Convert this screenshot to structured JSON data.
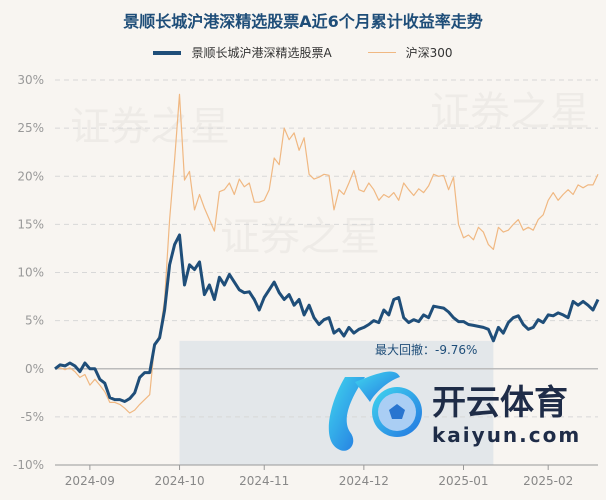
{
  "chart_data": {
    "type": "line",
    "title": "景顺长城沪港深精选股票A近6个月累计收益率走势",
    "legend_position": "top",
    "grid": true,
    "ylim": [
      -10,
      30
    ],
    "yticks": [
      "30%",
      "25%",
      "20%",
      "15%",
      "10%",
      "5%",
      "0%",
      "-5%",
      "-10%"
    ],
    "ytick_values": [
      30,
      25,
      20,
      15,
      10,
      5,
      0,
      -5,
      -10
    ],
    "xticks": [
      "2024-09",
      "2024-10",
      "2024-11",
      "2024-12",
      "2025-01",
      "2025-02"
    ],
    "series": [
      {
        "name": "景顺长城沪港深精选股票A",
        "color": "#1f4e79",
        "values": [
          0,
          0.4,
          0.3,
          0.6,
          0.3,
          -0.3,
          0.6,
          0,
          0,
          -1.1,
          -1.5,
          -3,
          -3.2,
          -3.2,
          -3.4,
          -3.1,
          -2.5,
          -0.9,
          -0.4,
          -0.4,
          2.5,
          3.2,
          6.1,
          10.8,
          12.9,
          13.9,
          8.7,
          10.8,
          10.3,
          11.1,
          7.7,
          8.7,
          7.2,
          9.5,
          8.7,
          9.8,
          9.0,
          8.2,
          7.9,
          8,
          7.2,
          6.1,
          7.4,
          8.2,
          9,
          7.9,
          7.2,
          7.7,
          6.6,
          7.2,
          5.6,
          6.6,
          5.3,
          4.6,
          5.1,
          5.3,
          3.7,
          4.1,
          3.4,
          4.3,
          3.7,
          4.1,
          4.3,
          4.6,
          5,
          4.8,
          6.1,
          5.6,
          7.2,
          7.4,
          5.3,
          4.8,
          5.1,
          4.9,
          5.6,
          5.3,
          6.5,
          6.4,
          6.3,
          5.9,
          5.3,
          4.9,
          4.9,
          4.6,
          4.5,
          4.4,
          4.3,
          4.1,
          2.9,
          4.3,
          3.7,
          4.8,
          5.3,
          5.5,
          4.6,
          4.1,
          4.3,
          5.1,
          4.8,
          5.6,
          5.5,
          5.8,
          5.6,
          5.3,
          7,
          6.6,
          7,
          6.6,
          6.1,
          7.2
        ]
      },
      {
        "name": "沪深300",
        "color": "#f0b882",
        "values": [
          0,
          0.1,
          -0.1,
          0.1,
          -0.3,
          -0.9,
          -0.6,
          -1.7,
          -1.1,
          -1.7,
          -2.4,
          -3.5,
          -3.5,
          -3.7,
          -4.1,
          -4.6,
          -4.3,
          -3.7,
          -3.2,
          -2.7,
          2.5,
          3.5,
          7.2,
          15.5,
          21.7,
          28.5,
          19.6,
          20.5,
          16.5,
          18.1,
          16.7,
          15.5,
          14.3,
          18.4,
          18.6,
          19.3,
          18.1,
          19.7,
          18.9,
          19.3,
          17.3,
          17.3,
          17.5,
          18.6,
          21.9,
          21.2,
          25,
          23.8,
          24.5,
          22.7,
          24,
          20.2,
          19.7,
          19.9,
          20.2,
          20.1,
          16.5,
          18.6,
          18.1,
          19.3,
          20.6,
          18.6,
          18.4,
          19.3,
          18.6,
          17.5,
          18.1,
          17.8,
          18.3,
          17.5,
          19.3,
          18.6,
          18,
          18.7,
          18.3,
          19,
          20.2,
          20,
          20.1,
          18.6,
          19.9,
          15,
          13.6,
          13.9,
          13.4,
          14.7,
          14.2,
          12.9,
          12.4,
          14.7,
          14.2,
          14.4,
          15,
          15.5,
          14.4,
          14.7,
          14.4,
          15.5,
          16,
          17.5,
          18.3,
          17.5,
          18.1,
          18.6,
          18.1,
          19.1,
          18.8,
          19.1,
          19.1,
          20.2
        ]
      }
    ],
    "annotation": "最大回撤：-9.76%",
    "drawdown_fill": "#dde3e8"
  },
  "watermark": {
    "text": "证券之星",
    "logo_cn": "开云体育",
    "logo_en": "kaiyun.com"
  }
}
